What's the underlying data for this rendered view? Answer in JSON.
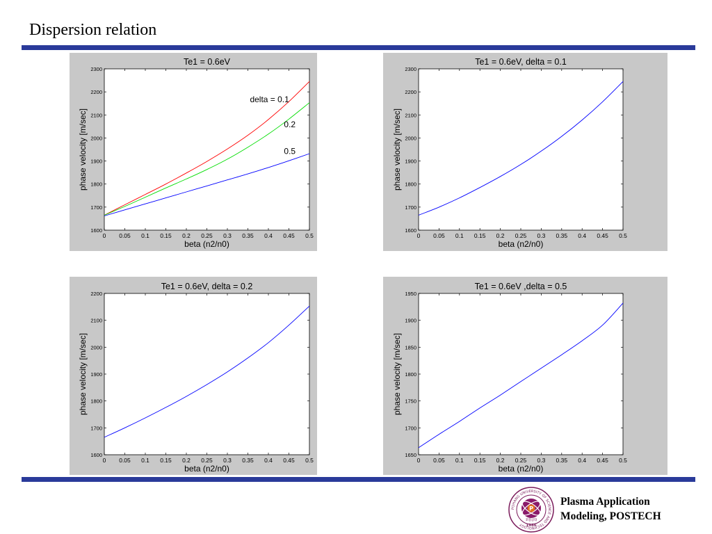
{
  "slide": {
    "title": "Dispersion relation",
    "footer_line1": "Plasma Application",
    "footer_line2": "Modeling, POSTECH"
  },
  "logo": {
    "ring_text": "POHANG UNIVERSITY OF SCIENCE AND TECHNOLOGY",
    "year": "1986",
    "center_letter": "P",
    "korean_text": "포항공대"
  },
  "colors": {
    "rule": "#2a3a9a",
    "panel_bg": "#c8c8c8",
    "red": "#ff0000",
    "green": "#00dd00",
    "blue": "#0000ff"
  },
  "chart_data": [
    {
      "type": "line",
      "title": "Te1 = 0.6eV",
      "xlabel": "beta (n2/n0)",
      "ylabel": "phase velocity [m/sec]",
      "xlim": [
        0,
        0.5
      ],
      "ylim": [
        1600,
        2300
      ],
      "xticks": [
        0,
        0.05,
        0.1,
        0.15,
        0.2,
        0.25,
        0.3,
        0.35,
        0.4,
        0.45,
        0.5
      ],
      "yticks": [
        1600,
        1700,
        1800,
        1900,
        2000,
        2100,
        2200,
        2300
      ],
      "grid": false,
      "x": [
        0,
        0.05,
        0.1,
        0.15,
        0.2,
        0.25,
        0.3,
        0.35,
        0.4,
        0.45,
        0.5
      ],
      "series": [
        {
          "name": "delta = 0.1",
          "color": "#ff0000",
          "values": [
            1665,
            1710,
            1755,
            1800,
            1848,
            1898,
            1952,
            2012,
            2080,
            2158,
            2245
          ]
        },
        {
          "name": "0.2",
          "color": "#00dd00",
          "values": [
            1665,
            1703,
            1743,
            1783,
            1822,
            1863,
            1908,
            1960,
            2017,
            2082,
            2153
          ]
        },
        {
          "name": "0.5",
          "color": "#0000ff",
          "values": [
            1662,
            1688,
            1714,
            1740,
            1766,
            1792,
            1818,
            1844,
            1872,
            1901,
            1932
          ]
        }
      ],
      "annotations": [
        {
          "text": "delta = 0.1",
          "x": 0.355,
          "y": 2155
        },
        {
          "text": "0.2",
          "x": 0.438,
          "y": 2047
        },
        {
          "text": "0.5",
          "x": 0.438,
          "y": 1930
        }
      ]
    },
    {
      "type": "line",
      "title": "Te1 = 0.6eV,  delta = 0.1",
      "xlabel": "beta (n2/n0)",
      "ylabel": "phase velocity [m/sec]",
      "xlim": [
        0,
        0.5
      ],
      "ylim": [
        1600,
        2300
      ],
      "xticks": [
        0,
        0.05,
        0.1,
        0.15,
        0.2,
        0.25,
        0.3,
        0.35,
        0.4,
        0.45,
        0.5
      ],
      "yticks": [
        1600,
        1700,
        1800,
        1900,
        2000,
        2100,
        2200,
        2300
      ],
      "grid": false,
      "x": [
        0,
        0.05,
        0.1,
        0.15,
        0.2,
        0.25,
        0.3,
        0.35,
        0.4,
        0.45,
        0.5
      ],
      "series": [
        {
          "color": "#0000ff",
          "values": [
            1665,
            1700,
            1740,
            1785,
            1833,
            1885,
            1943,
            2007,
            2078,
            2157,
            2245
          ]
        }
      ],
      "annotations": []
    },
    {
      "type": "line",
      "title": "Te1 = 0.6eV,  delta = 0.2",
      "xlabel": "beta (n2/n0)",
      "ylabel": "phase velocity [m/sec]",
      "xlim": [
        0,
        0.5
      ],
      "ylim": [
        1600,
        2200
      ],
      "xticks": [
        0,
        0.05,
        0.1,
        0.15,
        0.2,
        0.25,
        0.3,
        0.35,
        0.4,
        0.45,
        0.5
      ],
      "yticks": [
        1600,
        1700,
        1800,
        1900,
        2000,
        2100,
        2200
      ],
      "grid": false,
      "x": [
        0,
        0.05,
        0.1,
        0.15,
        0.2,
        0.25,
        0.3,
        0.35,
        0.4,
        0.45,
        0.5
      ],
      "series": [
        {
          "color": "#0000ff",
          "values": [
            1665,
            1700,
            1737,
            1776,
            1817,
            1861,
            1908,
            1960,
            2017,
            2082,
            2153
          ]
        }
      ],
      "annotations": []
    },
    {
      "type": "line",
      "title": "Te1 = 0.6eV ,delta = 0.5",
      "xlabel": "beta (n2/n0)",
      "ylabel": "phase velocity [m/sec]",
      "xlim": [
        0,
        0.5
      ],
      "ylim": [
        1650,
        1950
      ],
      "xticks": [
        0,
        0.05,
        0.1,
        0.15,
        0.2,
        0.25,
        0.3,
        0.35,
        0.4,
        0.45,
        0.5
      ],
      "yticks": [
        1650,
        1700,
        1750,
        1800,
        1850,
        1900,
        1950
      ],
      "grid": false,
      "x": [
        0,
        0.05,
        0.1,
        0.15,
        0.2,
        0.25,
        0.3,
        0.35,
        0.4,
        0.45,
        0.5
      ],
      "series": [
        {
          "color": "#0000ff",
          "values": [
            1663,
            1688,
            1712,
            1737,
            1761,
            1786,
            1811,
            1836,
            1862,
            1891,
            1932
          ]
        }
      ],
      "annotations": []
    }
  ]
}
